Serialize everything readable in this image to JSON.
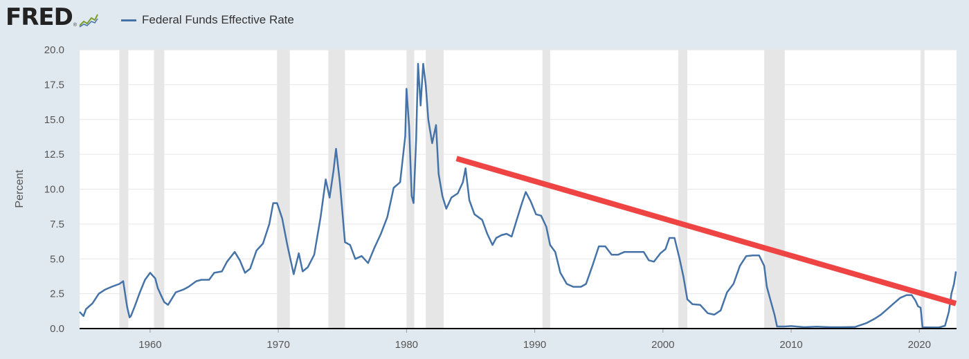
{
  "header": {
    "logo_text": "FRED",
    "logo_mark": "®",
    "logo_icon": "line-chart-icon"
  },
  "colors": {
    "background": "#e1e9f0",
    "plot": "#ffffff",
    "series": "#4572a7",
    "recession": "#e6e6e6",
    "trend": "#ee4444"
  },
  "chart_data": {
    "type": "line",
    "ylabel": "Percent",
    "xlim": [
      1954.5,
      2022.9
    ],
    "ylim": [
      0,
      20
    ],
    "y_ticks": [
      "0.0",
      "2.5",
      "5.0",
      "7.5",
      "10.0",
      "12.5",
      "15.0",
      "17.5",
      "20.0"
    ],
    "x_ticks": [
      "1960",
      "1970",
      "1980",
      "1990",
      "2000",
      "2010",
      "2020"
    ],
    "grid": "horizontal",
    "legend": "top-left",
    "series": [
      {
        "name": "Federal Funds Effective Rate",
        "x": [
          1954.5,
          1954.8,
          1955.0,
          1955.5,
          1956.0,
          1956.5,
          1957.0,
          1957.6,
          1957.9,
          1958.2,
          1958.4,
          1958.5,
          1958.8,
          1959.2,
          1959.6,
          1960.0,
          1960.4,
          1960.6,
          1960.9,
          1961.1,
          1961.4,
          1961.6,
          1962.0,
          1962.6,
          1963.0,
          1963.6,
          1964.0,
          1964.6,
          1965.0,
          1965.6,
          1966.0,
          1966.6,
          1967.0,
          1967.4,
          1967.8,
          1968.3,
          1968.8,
          1969.3,
          1969.6,
          1969.9,
          1970.3,
          1970.7,
          1971.2,
          1971.6,
          1971.9,
          1972.3,
          1972.8,
          1973.3,
          1973.7,
          1974.0,
          1974.3,
          1974.5,
          1974.8,
          1975.2,
          1975.6,
          1976.0,
          1976.5,
          1977.0,
          1977.5,
          1978.0,
          1978.5,
          1979.0,
          1979.5,
          1979.9,
          1980.0,
          1980.2,
          1980.4,
          1980.55,
          1980.75,
          1980.9,
          1981.1,
          1981.3,
          1981.5,
          1981.7,
          1982.0,
          1982.3,
          1982.5,
          1982.8,
          1983.1,
          1983.5,
          1984.0,
          1984.4,
          1984.6,
          1984.9,
          1985.3,
          1985.9,
          1986.3,
          1986.7,
          1987.0,
          1987.4,
          1987.8,
          1988.2,
          1988.6,
          1989.0,
          1989.3,
          1989.7,
          1990.1,
          1990.5,
          1990.9,
          1991.2,
          1991.6,
          1992.0,
          1992.5,
          1993.0,
          1993.6,
          1994.0,
          1994.5,
          1995.0,
          1995.5,
          1996.0,
          1996.5,
          1997.0,
          1997.5,
          1998.0,
          1998.5,
          1998.9,
          1999.3,
          1999.8,
          2000.2,
          2000.5,
          2000.9,
          2001.3,
          2001.6,
          2001.9,
          2002.3,
          2002.9,
          2003.5,
          2004.0,
          2004.5,
          2005.0,
          2005.5,
          2006.0,
          2006.5,
          2007.0,
          2007.5,
          2007.9,
          2008.1,
          2008.4,
          2008.7,
          2008.9,
          2009.5,
          2010.0,
          2011.0,
          2012.0,
          2013.0,
          2014.0,
          2015.0,
          2015.9,
          2016.5,
          2017.0,
          2017.5,
          2018.0,
          2018.5,
          2019.0,
          2019.4,
          2019.7,
          2019.9,
          2020.1,
          2020.25,
          2020.5,
          2021.0,
          2021.5,
          2022.0,
          2022.3,
          2022.5,
          2022.7,
          2022.85
        ],
        "values": [
          1.2,
          0.9,
          1.4,
          1.8,
          2.5,
          2.8,
          3.0,
          3.2,
          3.4,
          1.6,
          0.8,
          0.9,
          1.6,
          2.6,
          3.5,
          4.0,
          3.6,
          2.9,
          2.3,
          1.9,
          1.7,
          2.0,
          2.6,
          2.8,
          3.0,
          3.4,
          3.5,
          3.5,
          4.0,
          4.1,
          4.8,
          5.5,
          4.9,
          4.0,
          4.3,
          5.6,
          6.1,
          7.5,
          9.0,
          9.0,
          7.9,
          6.0,
          3.9,
          5.4,
          4.1,
          4.4,
          5.3,
          8.0,
          10.7,
          9.4,
          11.3,
          12.9,
          10.5,
          6.2,
          6.0,
          5.0,
          5.2,
          4.7,
          5.8,
          6.8,
          8.0,
          10.1,
          10.5,
          13.8,
          17.2,
          14.5,
          9.5,
          9.0,
          13.5,
          19.0,
          16.0,
          19.0,
          17.5,
          15.0,
          13.3,
          14.6,
          11.1,
          9.5,
          8.6,
          9.4,
          9.7,
          10.5,
          11.5,
          9.2,
          8.2,
          7.8,
          6.8,
          6.0,
          6.5,
          6.7,
          6.8,
          6.6,
          7.8,
          9.0,
          9.8,
          9.1,
          8.2,
          8.1,
          7.3,
          6.0,
          5.5,
          4.0,
          3.2,
          3.0,
          3.0,
          3.2,
          4.5,
          5.9,
          5.9,
          5.3,
          5.3,
          5.5,
          5.5,
          5.5,
          5.5,
          4.9,
          4.8,
          5.4,
          5.7,
          6.5,
          6.5,
          5.0,
          3.7,
          2.1,
          1.75,
          1.7,
          1.1,
          1.0,
          1.3,
          2.6,
          3.2,
          4.5,
          5.2,
          5.25,
          5.25,
          4.5,
          3.0,
          2.0,
          1.0,
          0.15,
          0.15,
          0.18,
          0.1,
          0.14,
          0.1,
          0.1,
          0.12,
          0.4,
          0.7,
          1.0,
          1.4,
          1.8,
          2.2,
          2.4,
          2.4,
          2.0,
          1.6,
          1.5,
          0.08,
          0.09,
          0.08,
          0.08,
          0.2,
          1.2,
          2.5,
          3.2,
          4.1
        ]
      }
    ],
    "recessions": [
      [
        1957.6,
        1958.3
      ],
      [
        1960.3,
        1961.1
      ],
      [
        1969.9,
        1970.9
      ],
      [
        1973.9,
        1975.2
      ],
      [
        1980.0,
        1980.6
      ],
      [
        1981.5,
        1982.9
      ],
      [
        1990.6,
        1991.2
      ],
      [
        2001.2,
        2001.9
      ],
      [
        2007.9,
        2009.5
      ],
      [
        2020.1,
        2020.4
      ]
    ],
    "trend_line": {
      "x": [
        1983.9,
        2022.85
      ],
      "y": [
        12.2,
        1.8
      ]
    }
  }
}
